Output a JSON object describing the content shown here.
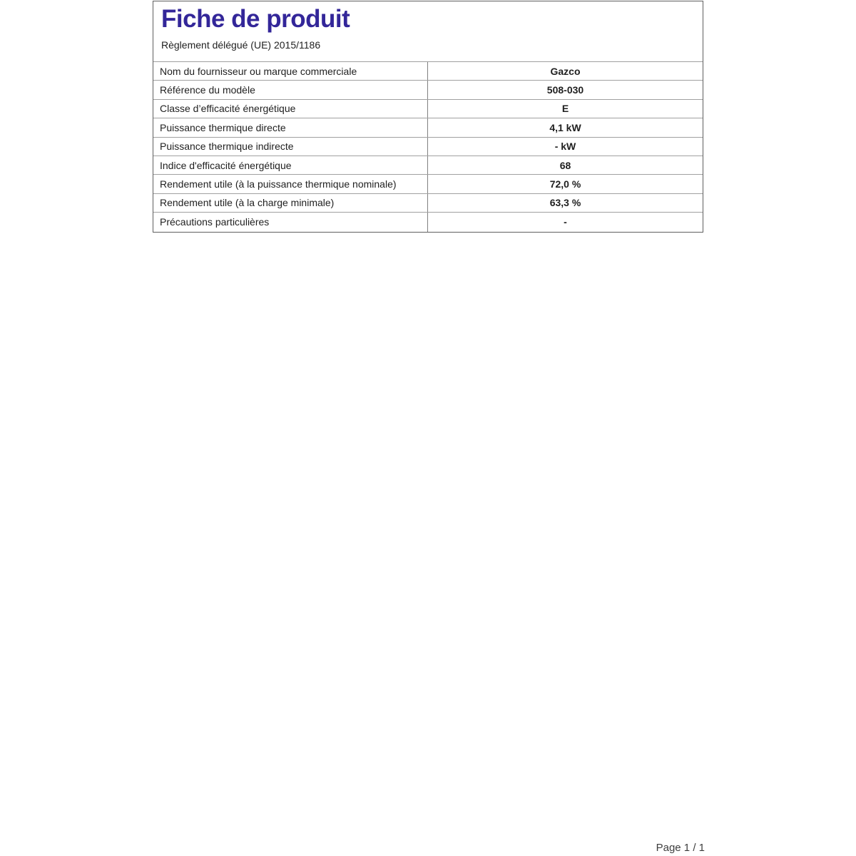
{
  "document": {
    "title": "Fiche de produit",
    "subtitle": "Règlement délégué (UE) 2015/1186",
    "title_color": "#332699",
    "footer": {
      "page_indicator": "Page 1 / 1"
    }
  },
  "table": {
    "rows": [
      {
        "label": "Nom du fournisseur ou marque commerciale",
        "value": "Gazco"
      },
      {
        "label": "Référence du modèle",
        "value": "508-030"
      },
      {
        "label": "Classe d’efficacité énergétique",
        "value": "E"
      },
      {
        "label": "Puissance thermique directe",
        "value": "4,1 kW"
      },
      {
        "label": "Puissance thermique indirecte",
        "value": "- kW"
      },
      {
        "label": "Indice d'efficacité énergétique",
        "value": "68"
      },
      {
        "label": "Rendement utile (à la puissance thermique nominale)",
        "value": "72,0 %"
      },
      {
        "label": "Rendement utile (à la charge minimale)",
        "value": "63,3 %"
      },
      {
        "label": "Précautions particulières",
        "value": "-"
      }
    ]
  }
}
